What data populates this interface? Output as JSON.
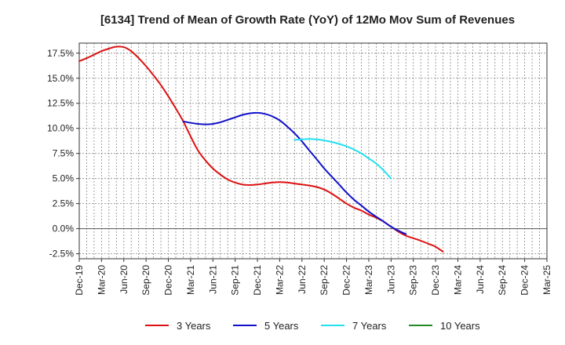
{
  "chart_data": {
    "type": "line",
    "title": "[6134]  Trend of Mean of Growth Rate (YoY) of 12Mo Mov Sum of Revenues",
    "xlabel": "",
    "ylabel": "",
    "ylim": [
      -3.0,
      18.5
    ],
    "yticks": [
      -2.5,
      0.0,
      2.5,
      5.0,
      7.5,
      10.0,
      12.5,
      15.0,
      17.5
    ],
    "ytick_labels": [
      "-2.5%",
      "0.0%",
      "2.5%",
      "5.0%",
      "7.5%",
      "10.0%",
      "12.5%",
      "15.0%",
      "17.5%"
    ],
    "x_categories": [
      "Dec-19",
      "Mar-20",
      "Jun-20",
      "Sep-20",
      "Dec-20",
      "Mar-21",
      "Jun-21",
      "Sep-21",
      "Dec-21",
      "Mar-22",
      "Jun-22",
      "Sep-22",
      "Dec-22",
      "Mar-23",
      "Jun-23",
      "Sep-23",
      "Dec-23",
      "Mar-24",
      "Jun-24",
      "Sep-24",
      "Dec-24",
      "Mar-25"
    ],
    "grid": true,
    "legend_position": "bottom",
    "series": [
      {
        "name": "3 Years",
        "color": "#dd1111",
        "points": [
          [
            0,
            16.7
          ],
          [
            0.33,
            17.0
          ],
          [
            0.67,
            17.35
          ],
          [
            1,
            17.7
          ],
          [
            1.33,
            17.95
          ],
          [
            1.67,
            18.15
          ],
          [
            2,
            18.1
          ],
          [
            2.33,
            17.7
          ],
          [
            2.67,
            17.0
          ],
          [
            3,
            16.2
          ],
          [
            3.33,
            15.3
          ],
          [
            3.67,
            14.3
          ],
          [
            4,
            13.2
          ],
          [
            4.33,
            12.0
          ],
          [
            4.67,
            10.7
          ],
          [
            5,
            9.2
          ],
          [
            5.33,
            7.8
          ],
          [
            5.67,
            6.8
          ],
          [
            6,
            6.0
          ],
          [
            6.33,
            5.4
          ],
          [
            6.67,
            4.9
          ],
          [
            7,
            4.6
          ],
          [
            7.33,
            4.4
          ],
          [
            7.67,
            4.35
          ],
          [
            8,
            4.4
          ],
          [
            8.33,
            4.5
          ],
          [
            8.67,
            4.6
          ],
          [
            9,
            4.65
          ],
          [
            9.33,
            4.6
          ],
          [
            9.67,
            4.5
          ],
          [
            10,
            4.4
          ],
          [
            10.33,
            4.3
          ],
          [
            10.67,
            4.15
          ],
          [
            11,
            3.9
          ],
          [
            11.33,
            3.5
          ],
          [
            11.67,
            3.0
          ],
          [
            12,
            2.5
          ],
          [
            12.33,
            2.1
          ],
          [
            12.67,
            1.8
          ],
          [
            13,
            1.4
          ],
          [
            13.33,
            1.1
          ],
          [
            13.67,
            0.7
          ],
          [
            14,
            0.2
          ],
          [
            14.33,
            -0.3
          ],
          [
            14.67,
            -0.7
          ],
          [
            15,
            -0.95
          ],
          [
            15.33,
            -1.2
          ],
          [
            15.67,
            -1.5
          ],
          [
            16,
            -1.8
          ],
          [
            16.33,
            -2.3
          ]
        ]
      },
      {
        "name": "5 Years",
        "color": "#1111cc",
        "points": [
          [
            4.67,
            10.7
          ],
          [
            5,
            10.55
          ],
          [
            5.33,
            10.45
          ],
          [
            5.67,
            10.4
          ],
          [
            6,
            10.45
          ],
          [
            6.33,
            10.6
          ],
          [
            6.67,
            10.85
          ],
          [
            7,
            11.1
          ],
          [
            7.33,
            11.35
          ],
          [
            7.67,
            11.5
          ],
          [
            8,
            11.55
          ],
          [
            8.33,
            11.45
          ],
          [
            8.67,
            11.2
          ],
          [
            9,
            10.8
          ],
          [
            9.33,
            10.2
          ],
          [
            9.67,
            9.5
          ],
          [
            10,
            8.7
          ],
          [
            10.33,
            7.8
          ],
          [
            10.67,
            6.9
          ],
          [
            11,
            6.0
          ],
          [
            11.33,
            5.2
          ],
          [
            11.67,
            4.4
          ],
          [
            12,
            3.6
          ],
          [
            12.33,
            2.9
          ],
          [
            12.67,
            2.3
          ],
          [
            13,
            1.7
          ],
          [
            13.33,
            1.2
          ],
          [
            13.67,
            0.7
          ],
          [
            14,
            0.2
          ],
          [
            14.33,
            -0.2
          ],
          [
            14.67,
            -0.55
          ]
        ]
      },
      {
        "name": "7 Years",
        "color": "#22e0f0",
        "points": [
          [
            9.67,
            8.85
          ],
          [
            10,
            8.9
          ],
          [
            10.33,
            8.95
          ],
          [
            10.67,
            8.9
          ],
          [
            11,
            8.8
          ],
          [
            11.33,
            8.65
          ],
          [
            11.67,
            8.45
          ],
          [
            12,
            8.2
          ],
          [
            12.33,
            7.9
          ],
          [
            12.67,
            7.5
          ],
          [
            13,
            7.0
          ],
          [
            13.33,
            6.5
          ],
          [
            13.67,
            5.8
          ],
          [
            14,
            5.0
          ]
        ]
      },
      {
        "name": "10 Years",
        "color": "#228b22",
        "points": []
      }
    ]
  }
}
